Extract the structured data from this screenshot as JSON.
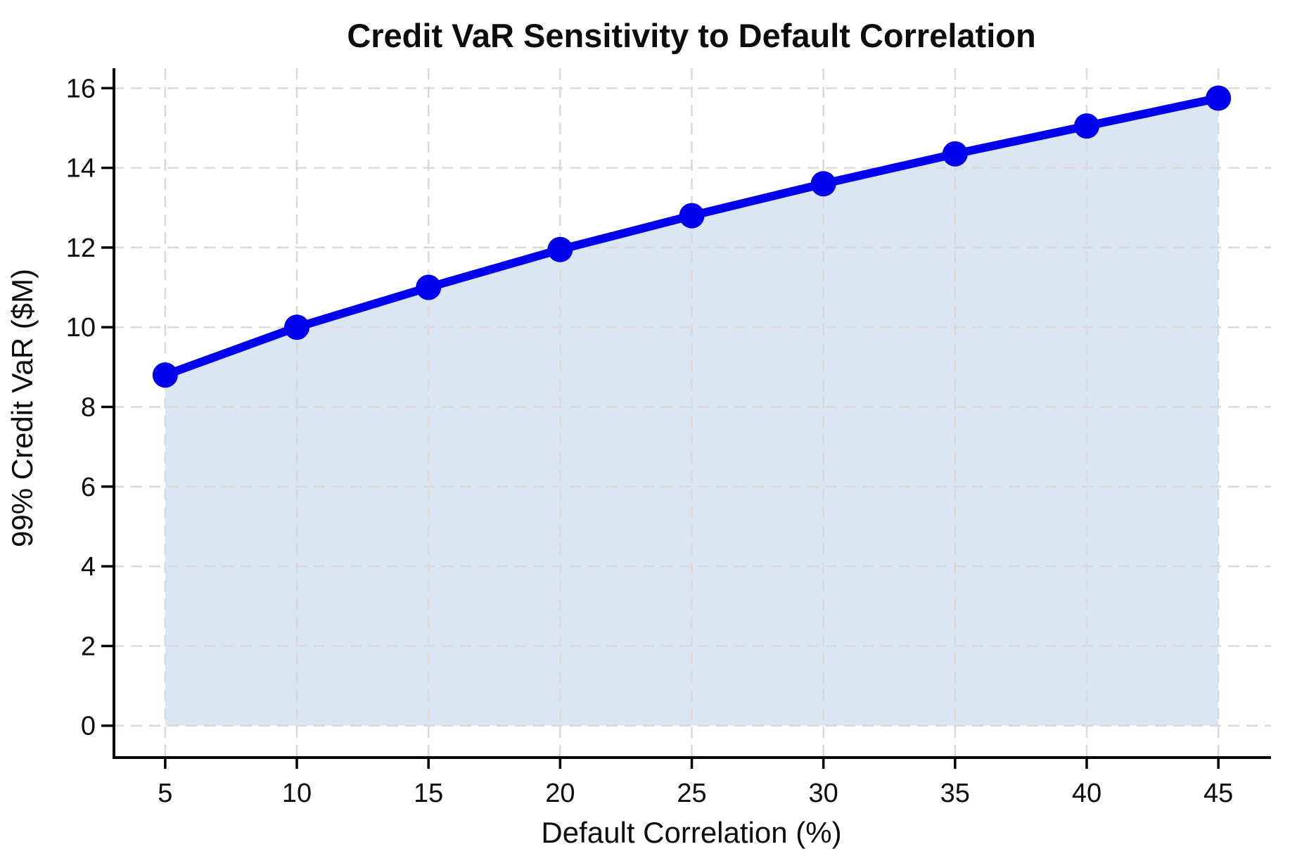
{
  "chart_data": {
    "type": "area",
    "title": "Credit VaR Sensitivity to Default Correlation",
    "xlabel": "Default Correlation (%)",
    "ylabel": "99% Credit VaR ($M)",
    "x": [
      5,
      10,
      15,
      20,
      25,
      30,
      35,
      40,
      45
    ],
    "series": [
      {
        "name": "99% Credit VaR",
        "values": [
          8.8,
          10.0,
          11.0,
          11.95,
          12.8,
          13.6,
          14.35,
          15.05,
          15.75
        ]
      }
    ],
    "xticks": [
      5,
      10,
      15,
      20,
      25,
      30,
      35,
      40,
      45
    ],
    "yticks": [
      0,
      2,
      4,
      6,
      8,
      10,
      12,
      14,
      16
    ],
    "xlim": [
      3,
      47
    ],
    "ylim": [
      -0.8,
      16.5
    ],
    "grid": true,
    "grid_style": "dashed",
    "legend": false,
    "fill_to_zero": true,
    "marker": "circle",
    "colors": {
      "line": "#0000ee",
      "marker": "#0000ee",
      "fill": "#d3e2ef",
      "grid": "#d9d9d9",
      "axis": "#000000",
      "text": "#0d0d0d",
      "background": "#ffffff"
    }
  }
}
